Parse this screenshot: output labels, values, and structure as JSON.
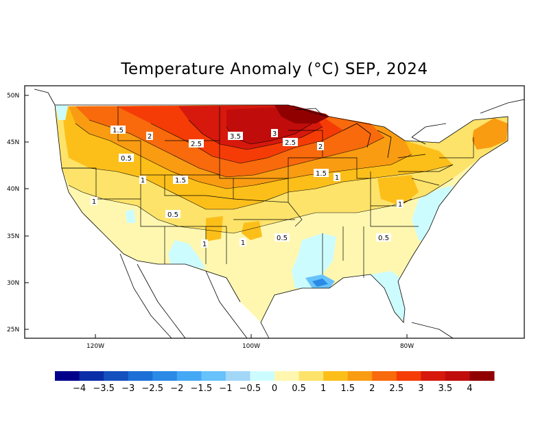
{
  "title": "Temperature Anomaly (°C) SEP, 2024",
  "lat_labels": [
    "50N",
    "45N",
    "40N",
    "35N",
    "30N",
    "25N"
  ],
  "lon_labels": [
    "120W",
    "100W",
    "80W"
  ],
  "contour_labels": [
    "1.5",
    "2",
    "2.5",
    "3.5",
    "3",
    "2.5",
    "2",
    "1.5",
    "1",
    "0.5",
    "1",
    "1.5",
    "1",
    "0.5",
    "1",
    "1",
    "0.5",
    "0.5",
    "1"
  ],
  "colorbar": {
    "colors": [
      "#00008b",
      "#0a2ea8",
      "#1450be",
      "#1c6fd6",
      "#2a8ae6",
      "#45a8f5",
      "#68c2fb",
      "#a3d7f8",
      "#cdfcff",
      "#fff7b0",
      "#fde36a",
      "#fcbf1a",
      "#f99c12",
      "#f86a0c",
      "#f53c06",
      "#d6190c",
      "#c10c0c",
      "#900000"
    ],
    "labels": [
      "−4",
      "−3.5",
      "−3",
      "−2.5",
      "−2",
      "−1.5",
      "−1",
      "−0.5",
      "0",
      "0.5",
      "1",
      "1.5",
      "2",
      "2.5",
      "3",
      "3.5",
      "4"
    ]
  }
}
